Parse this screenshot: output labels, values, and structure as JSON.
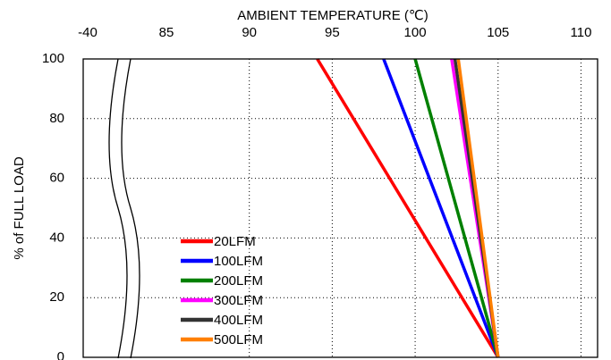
{
  "chart_data": {
    "type": "line",
    "xlabel": "AMBIENT TEMPERATURE (℃)",
    "ylabel": "% of FULL LOAD",
    "xlim": [
      -40,
      111
    ],
    "xticks": [
      -40,
      85,
      90,
      95,
      100,
      105,
      110
    ],
    "ylim": [
      0,
      100
    ],
    "yticks": [
      0,
      20,
      40,
      60,
      80,
      100
    ],
    "grid": true,
    "legend": "lower left",
    "series": [
      {
        "name": "20LFM",
        "color": "#ff0000",
        "x": [
          94.1,
          105
        ],
        "values": [
          100,
          0
        ]
      },
      {
        "name": "100LFM",
        "color": "#0000ff",
        "x": [
          98.1,
          105
        ],
        "values": [
          100,
          0
        ]
      },
      {
        "name": "200LFM",
        "color": "#008000",
        "x": [
          100.0,
          105
        ],
        "values": [
          100,
          0
        ]
      },
      {
        "name": "300LFM",
        "color": "#ff00ff",
        "x": [
          102.2,
          105
        ],
        "values": [
          100,
          0
        ]
      },
      {
        "name": "400LFM",
        "color": "#333333",
        "x": [
          102.4,
          105
        ],
        "values": [
          100,
          0
        ]
      },
      {
        "name": "500LFM",
        "color": "#ff7f00",
        "x": [
          102.6,
          105
        ],
        "values": [
          100,
          0
        ]
      }
    ]
  }
}
